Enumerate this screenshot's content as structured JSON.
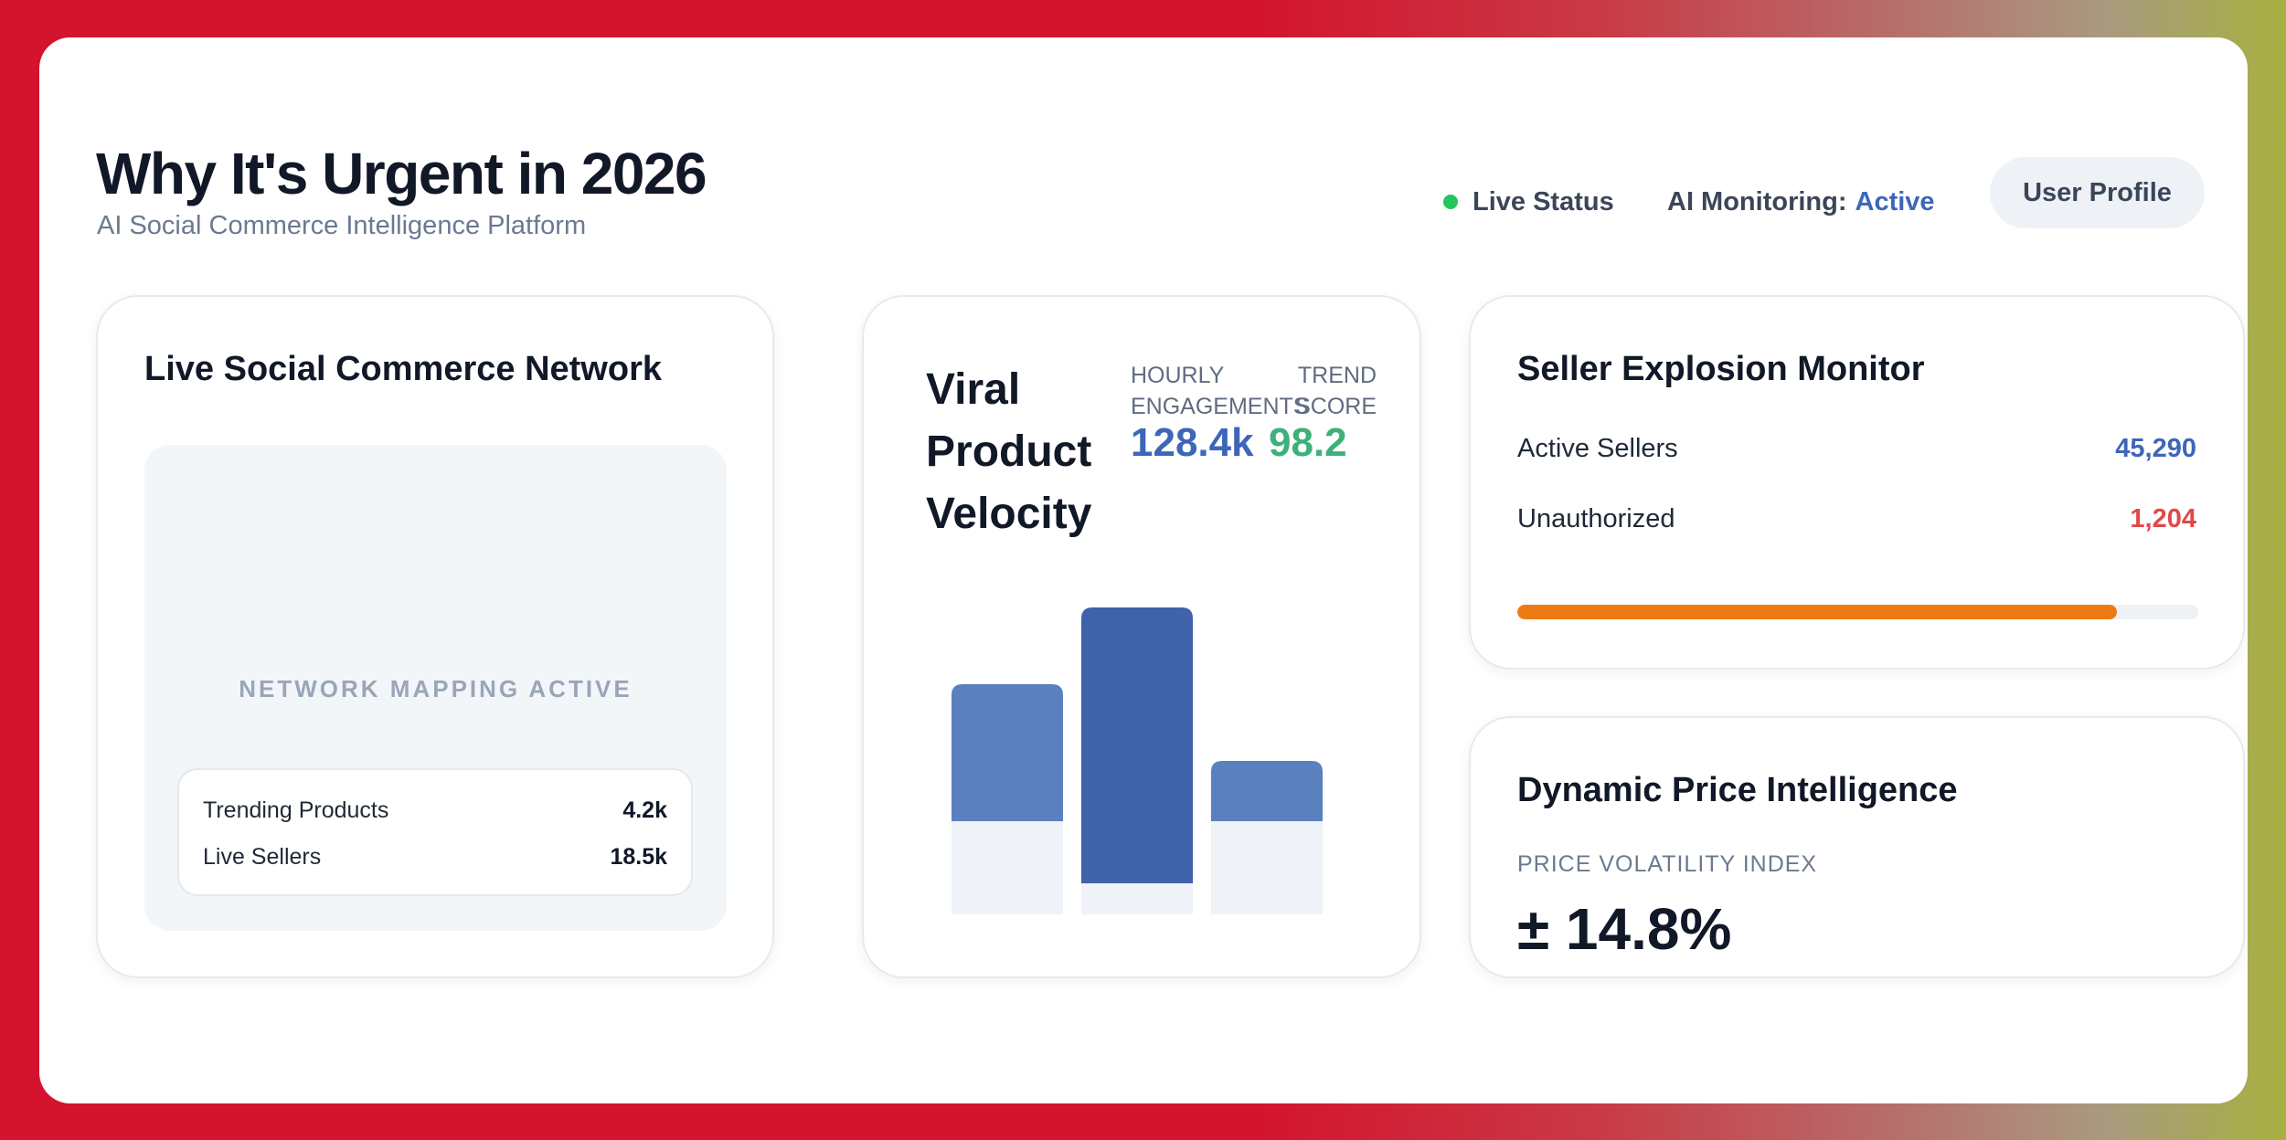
{
  "header": {
    "title": "Why It's Urgent in 2026",
    "subtitle": "AI Social Commerce Intelligence Platform",
    "live_status": "Live Status",
    "ai_monitoring_label": "AI Monitoring:",
    "ai_monitoring_value": "Active",
    "user_profile": "User Profile"
  },
  "network_card": {
    "title": "Live Social Commerce Network",
    "mapping_label": "NETWORK MAPPING ACTIVE",
    "stats": [
      {
        "label": "Trending Products",
        "value": "4.2k"
      },
      {
        "label": "Live Sellers",
        "value": "18.5k"
      }
    ]
  },
  "velocity_card": {
    "title": "Viral Product Velocity",
    "metrics": [
      {
        "label": "HOURLY ENGAGEMENTS",
        "value": "128.4k"
      },
      {
        "label": "TREND SCORE",
        "value": "98.2"
      }
    ]
  },
  "chart_data": {
    "type": "bar",
    "values": [
      0.75,
      1.0,
      0.5
    ],
    "colors": [
      "#5a80c0",
      "#3f62aa",
      "#5a80c0"
    ],
    "baseline_fraction": 0.3
  },
  "seller_card": {
    "title": "Seller Explosion Monitor",
    "rows": [
      {
        "label": "Active Sellers",
        "value": "45,290"
      },
      {
        "label": "Unauthorized",
        "value": "1,204"
      }
    ],
    "progress_fraction": 0.88,
    "progress_color": "#ee7a16"
  },
  "price_card": {
    "title": "Dynamic Price Intelligence",
    "index_label": "PRICE VOLATILITY INDEX",
    "index_value": "± 14.8%"
  }
}
